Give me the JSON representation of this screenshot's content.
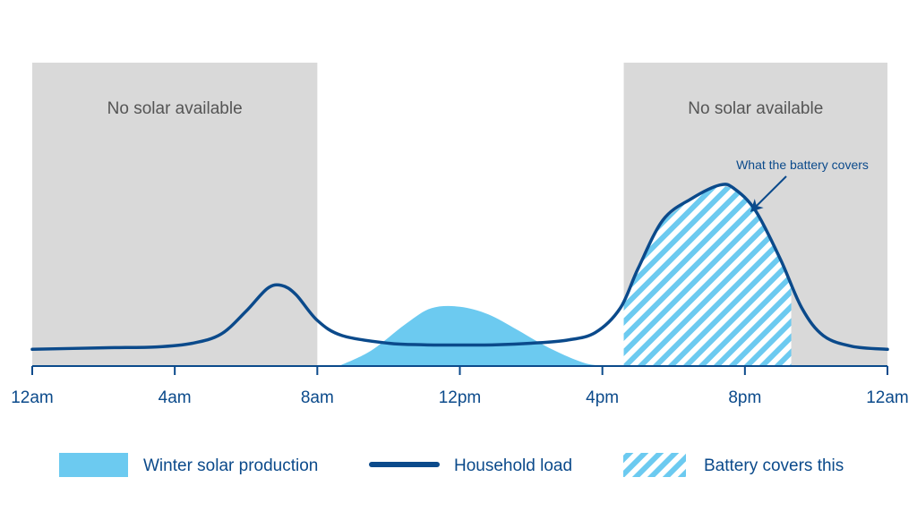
{
  "chart_data": {
    "type": "area",
    "x_unit": "hour of day",
    "x_range": [
      0,
      24
    ],
    "x_ticks": [
      {
        "value": 0,
        "label": "12am"
      },
      {
        "value": 4,
        "label": "4am"
      },
      {
        "value": 8,
        "label": "8am"
      },
      {
        "value": 12,
        "label": "12pm"
      },
      {
        "value": 16,
        "label": "4pm"
      },
      {
        "value": 20,
        "label": "8pm"
      },
      {
        "value": 24,
        "label": "12am"
      }
    ],
    "y_range": [
      0,
      1
    ],
    "y_axis_shown": false,
    "grid": false,
    "legend_position": "bottom",
    "regions": [
      {
        "name": "no-solar-morning",
        "x_start": 0,
        "x_end": 8,
        "label": "No solar available",
        "color": "#d9d9d9"
      },
      {
        "name": "no-solar-evening",
        "x_start": 16.6,
        "x_end": 24,
        "label": "No solar available",
        "color": "#d9d9d9"
      }
    ],
    "series": [
      {
        "name": "Winter solar production",
        "kind": "area",
        "color": "#6ccaf0",
        "points": [
          [
            8.6,
            0
          ],
          [
            9.5,
            0.05
          ],
          [
            10.5,
            0.14
          ],
          [
            11.2,
            0.19
          ],
          [
            12,
            0.195
          ],
          [
            12.8,
            0.17
          ],
          [
            13.6,
            0.12
          ],
          [
            14.5,
            0.06
          ],
          [
            15.5,
            0.01
          ],
          [
            16.2,
            0
          ]
        ]
      },
      {
        "name": "Household load",
        "kind": "line",
        "color": "#0b4a8b",
        "points": [
          [
            0,
            0.055
          ],
          [
            2,
            0.06
          ],
          [
            3.5,
            0.063
          ],
          [
            4.5,
            0.075
          ],
          [
            5.3,
            0.105
          ],
          [
            6,
            0.18
          ],
          [
            6.6,
            0.255
          ],
          [
            7,
            0.265
          ],
          [
            7.4,
            0.235
          ],
          [
            8,
            0.15
          ],
          [
            8.7,
            0.1
          ],
          [
            10,
            0.075
          ],
          [
            11,
            0.07
          ],
          [
            12,
            0.069
          ],
          [
            13,
            0.07
          ],
          [
            14,
            0.075
          ],
          [
            15,
            0.085
          ],
          [
            15.8,
            0.11
          ],
          [
            16.5,
            0.19
          ],
          [
            17,
            0.32
          ],
          [
            17.7,
            0.48
          ],
          [
            18.5,
            0.55
          ],
          [
            19.3,
            0.595
          ],
          [
            19.7,
            0.583
          ],
          [
            20.3,
            0.51
          ],
          [
            21,
            0.35
          ],
          [
            21.6,
            0.19
          ],
          [
            22.2,
            0.1
          ],
          [
            23,
            0.065
          ],
          [
            24,
            0.055
          ]
        ]
      },
      {
        "name": "Battery covers this",
        "kind": "hatched-area",
        "color": "#6ccaf0",
        "x_start": 16.6,
        "x_end": 21.3,
        "follows": "Household load"
      }
    ],
    "annotations": [
      {
        "text": "What the battery covers",
        "target_x": 20.1,
        "target_y": 0.5
      }
    ]
  }
}
